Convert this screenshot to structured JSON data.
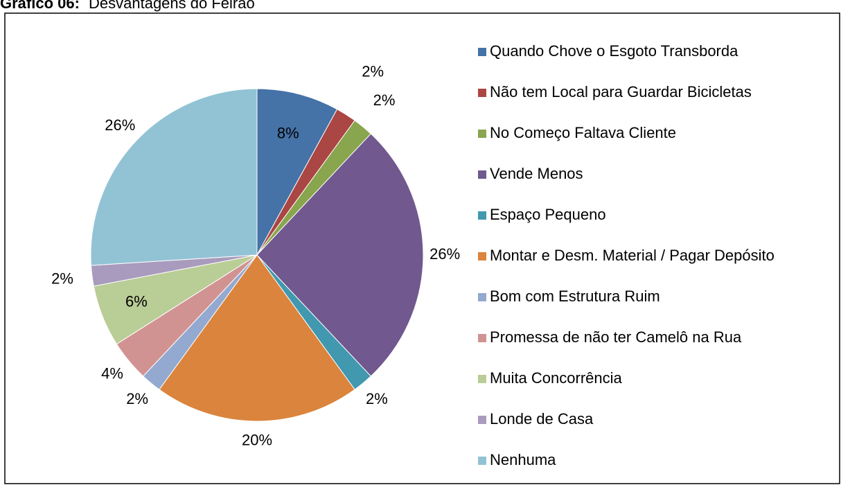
{
  "chart_data": {
    "type": "pie",
    "title_label": "Gráfico 06:",
    "title": "Desvantagens do Feirão",
    "categories": [
      "Quando Chove o Esgoto Transborda",
      "Não tem Local para Guardar Bicicletas",
      "No Começo Faltava Cliente",
      "Vende Menos",
      "Espaço Pequeno",
      "Montar e Desm. Material / Pagar Depósito",
      "Bom com Estrutura Ruim",
      "Promessa de não ter Camelô na Rua",
      "Muita Concorrência",
      "Londe de Casa",
      "Nenhuma"
    ],
    "values": [
      8,
      2,
      2,
      26,
      2,
      20,
      2,
      4,
      6,
      2,
      26
    ],
    "value_labels": [
      "8%",
      "2%",
      "2%",
      "26%",
      "2%",
      "20%",
      "2%",
      "4%",
      "6%",
      "2%",
      "26%"
    ],
    "colors": [
      "#4572A7",
      "#AA4643",
      "#89A54E",
      "#71588F",
      "#4198AF",
      "#DB843D",
      "#93A9CF",
      "#D19392",
      "#B9CD96",
      "#A99BBD",
      "#92C3D4"
    ],
    "legend": "right"
  }
}
